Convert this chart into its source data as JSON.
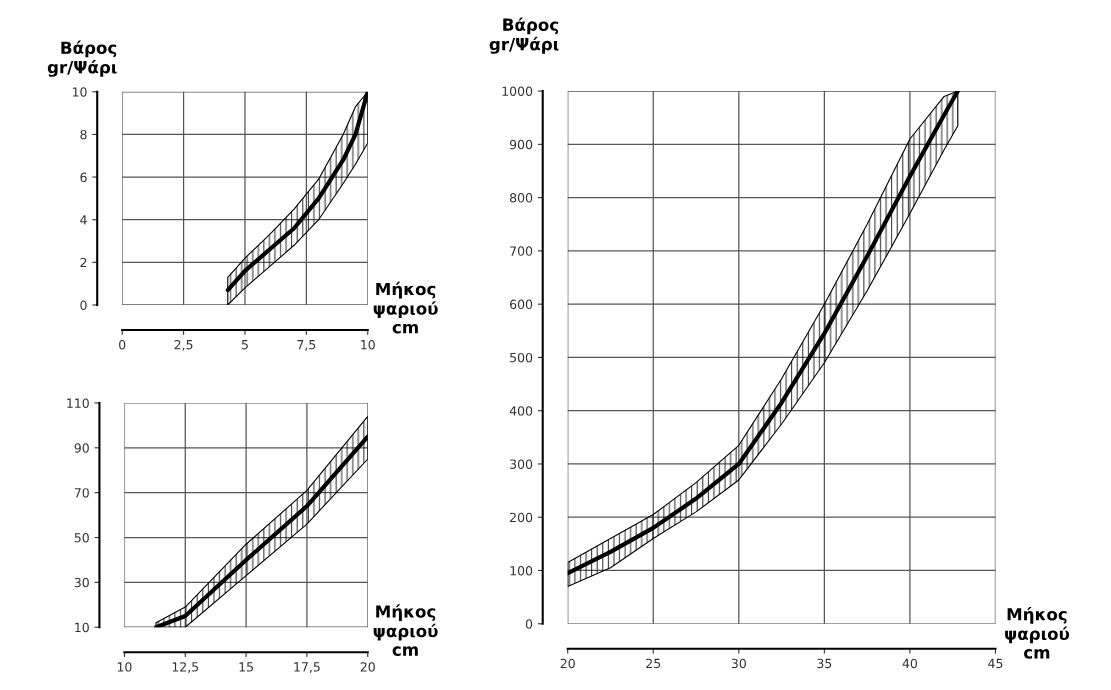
{
  "chart_data": [
    {
      "type": "line",
      "ylabel": "Βάρος\ngr/Ψάρι",
      "xlabel": "Μήκος\nψαριού\ncm",
      "xlim": [
        0,
        10
      ],
      "ylim": [
        0,
        10
      ],
      "xticks": [
        0,
        {
          "value": 2.5,
          "label": "2,5"
        },
        5,
        {
          "value": 7.5,
          "label": "7,5"
        },
        10
      ],
      "yticks": [
        0,
        2,
        4,
        6,
        8,
        10
      ],
      "grid": true,
      "series": [
        {
          "color": "#000000",
          "x": [
            4.3,
            5,
            6,
            7,
            8,
            9,
            9.5,
            10
          ],
          "values": [
            0.7,
            1.6,
            2.6,
            3.6,
            5.0,
            6.8,
            8.0,
            10
          ],
          "lower": [
            0,
            0.8,
            1.8,
            2.8,
            4.0,
            5.7,
            6.6,
            7.6
          ],
          "upper": [
            1.3,
            2.2,
            3.3,
            4.5,
            5.9,
            8.0,
            9.3,
            10
          ]
        }
      ]
    },
    {
      "type": "line",
      "xlabel": "Μήκος\nψαριού\ncm",
      "xlim": [
        10,
        20
      ],
      "ylim": [
        10,
        110
      ],
      "xticks": [
        10,
        {
          "value": 12.5,
          "label": "12,5"
        },
        15,
        {
          "value": 17.5,
          "label": "17,5"
        },
        20
      ],
      "yticks": [
        10,
        30,
        50,
        70,
        90,
        110
      ],
      "grid": true,
      "series": [
        {
          "color": "#000000",
          "x": [
            11.3,
            12.5,
            15,
            17.5,
            20
          ],
          "values": [
            10,
            15,
            40,
            64,
            95
          ],
          "lower": [
            10,
            10,
            33,
            56,
            85
          ],
          "upper": [
            12,
            19,
            47,
            71,
            104
          ]
        }
      ]
    },
    {
      "type": "line",
      "ylabel": "Βάρος\ngr/Ψάρι",
      "xlabel": "Μήκος\nψαριού\ncm",
      "xlim": [
        20,
        45
      ],
      "ylim": [
        0,
        1000
      ],
      "xticks": [
        20,
        25,
        30,
        35,
        40,
        45
      ],
      "yticks": [
        0,
        100,
        200,
        300,
        400,
        500,
        600,
        700,
        800,
        900,
        1000
      ],
      "grid": true,
      "series": [
        {
          "color": "#000000",
          "x": [
            20,
            22.5,
            25,
            27.5,
            30,
            32.5,
            35,
            37.5,
            40,
            42,
            42.8
          ],
          "values": [
            95,
            135,
            180,
            235,
            300,
            415,
            545,
            690,
            840,
            955,
            1000
          ],
          "lower": [
            70,
            105,
            160,
            210,
            270,
            375,
            490,
            625,
            770,
            890,
            935
          ],
          "upper": [
            115,
            160,
            205,
            265,
            335,
            460,
            600,
            750,
            910,
            990,
            1000
          ]
        }
      ]
    }
  ]
}
